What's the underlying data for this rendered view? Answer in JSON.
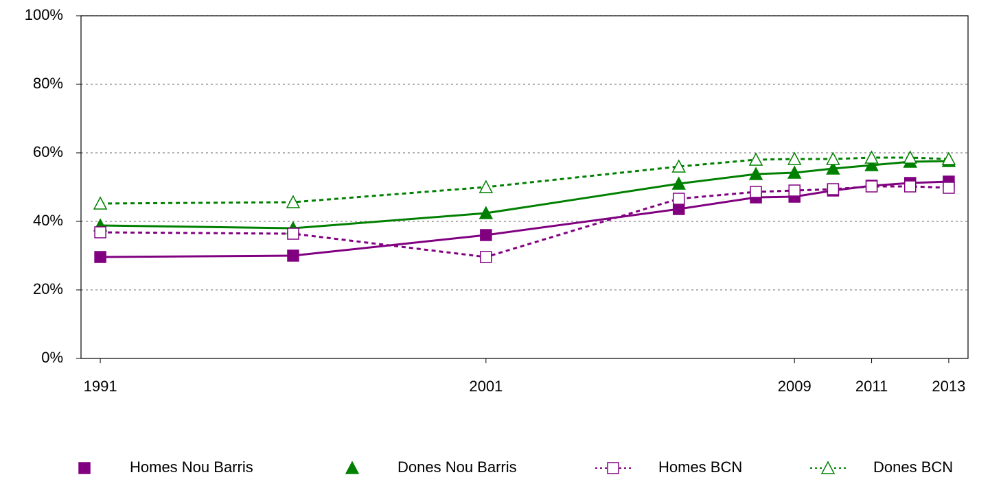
{
  "chart_data": {
    "type": "line",
    "x": [
      1991,
      1996,
      2001,
      2006,
      2008,
      2009,
      2010,
      2011,
      2012,
      2013
    ],
    "xlim": [
      1990.5,
      2013.5
    ],
    "xticks": [
      1991,
      2001,
      2009,
      2011,
      2013
    ],
    "ylim": [
      0,
      100
    ],
    "yticks": [
      {
        "value": 0,
        "label": "0%"
      },
      {
        "value": 20,
        "label": "20%"
      },
      {
        "value": 40,
        "label": "40%"
      },
      {
        "value": 60,
        "label": "60%"
      },
      {
        "value": 80,
        "label": "80%"
      },
      {
        "value": 100,
        "label": "100%"
      }
    ],
    "grid": true,
    "legend": "bottom",
    "series": [
      {
        "name": "Homes Nou Barris",
        "color": "#800080",
        "marker": "square",
        "filled": true,
        "line_style": "solid",
        "values": [
          29.6,
          30,
          36,
          43.6,
          47,
          47.2,
          49,
          50.4,
          51.2,
          51.6
        ]
      },
      {
        "name": "Dones Nou Barris",
        "color": "#008000",
        "marker": "triangle",
        "filled": true,
        "line_style": "solid",
        "values": [
          38.8,
          38,
          42.4,
          51,
          53.8,
          54.2,
          55.4,
          56.4,
          57.4,
          57.6
        ]
      },
      {
        "name": "Homes BCN",
        "color": "#800080",
        "marker": "square",
        "filled": false,
        "line_style": "dashed",
        "values": [
          36.8,
          36.4,
          29.6,
          46.6,
          48.6,
          49,
          49.4,
          50.2,
          50.2,
          49.8
        ]
      },
      {
        "name": "Dones BCN",
        "color": "#008000",
        "marker": "triangle",
        "filled": false,
        "line_style": "dashed",
        "values": [
          45.2,
          45.6,
          50,
          56,
          58,
          58.2,
          58.2,
          58.6,
          58.6,
          58.2
        ]
      }
    ]
  }
}
